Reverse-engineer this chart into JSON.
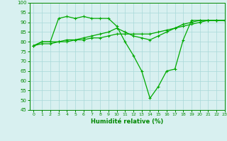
{
  "x": [
    0,
    1,
    2,
    3,
    4,
    5,
    6,
    7,
    8,
    9,
    10,
    11,
    12,
    13,
    14,
    15,
    16,
    17,
    18,
    19,
    20,
    21,
    22,
    23
  ],
  "line1": [
    78,
    80,
    80,
    92,
    93,
    92,
    93,
    92,
    92,
    92,
    88,
    80,
    73,
    65,
    51,
    57,
    65,
    66,
    81,
    91,
    91,
    91,
    91,
    91
  ],
  "line2": [
    78,
    80,
    80,
    80,
    81,
    81,
    82,
    83,
    84,
    85,
    87,
    85,
    83,
    82,
    81,
    83,
    85,
    87,
    89,
    90,
    91,
    91,
    91,
    91
  ],
  "line3": [
    78,
    79,
    79,
    80,
    80,
    81,
    81,
    82,
    82,
    83,
    84,
    84,
    84,
    84,
    84,
    85,
    86,
    87,
    88,
    89,
    90,
    91,
    91,
    91
  ],
  "bg_color": "#d8f0f0",
  "grid_color": "#a8d8d8",
  "line_color": "#00aa00",
  "xlabel": "Humidité relative (%)",
  "ylim": [
    45,
    100
  ],
  "xlim": [
    -0.5,
    23
  ],
  "yticks": [
    45,
    50,
    55,
    60,
    65,
    70,
    75,
    80,
    85,
    90,
    95,
    100
  ],
  "xticks": [
    0,
    1,
    2,
    3,
    4,
    5,
    6,
    7,
    8,
    9,
    10,
    11,
    12,
    13,
    14,
    15,
    16,
    17,
    18,
    19,
    20,
    21,
    22,
    23
  ]
}
